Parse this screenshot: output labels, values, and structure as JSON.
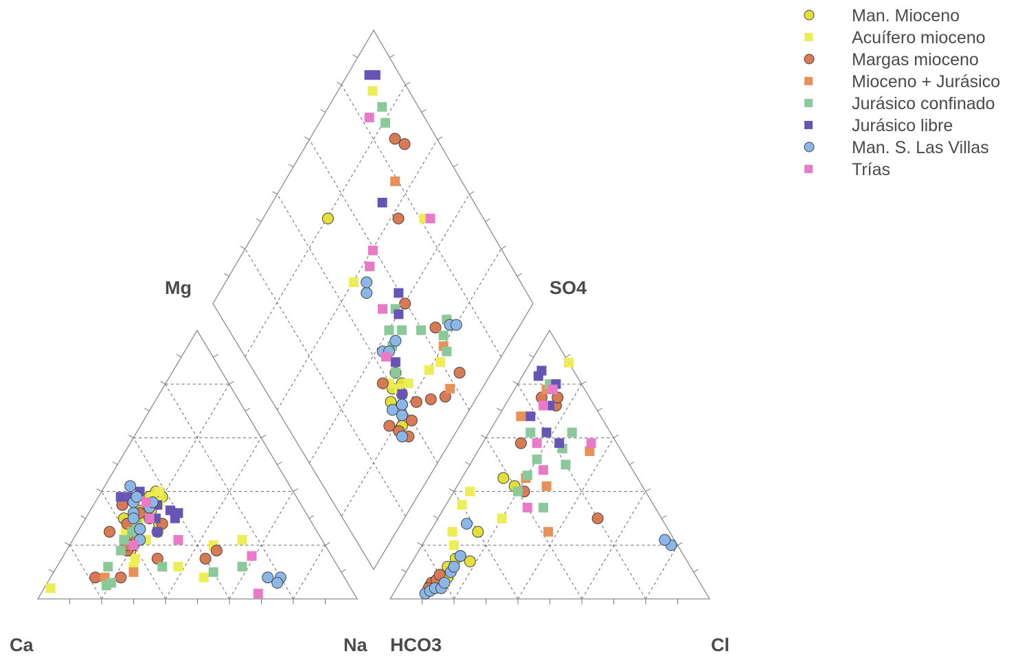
{
  "chart_data": {
    "type": "scatter",
    "subtype": "piper-diagram",
    "title": "",
    "axis_labels": {
      "cation_left": "Ca",
      "cation_right": "Na",
      "cation_top": "Mg",
      "anion_left": "HCO3",
      "anion_right": "Cl",
      "anion_top": "SO4"
    },
    "grid": true,
    "legend_position": "top-right",
    "series": [
      {
        "name": "Man. Mioceno",
        "marker": "circle",
        "color": "#e3e03a",
        "cations": [
          [
            50,
            30
          ],
          [
            42,
            38
          ],
          [
            47,
            35
          ],
          [
            52,
            33
          ],
          [
            58,
            30
          ],
          [
            48,
            33
          ],
          [
            55,
            28
          ],
          [
            46,
            38
          ],
          [
            43,
            40
          ],
          [
            56,
            35
          ],
          [
            50,
            25
          ],
          [
            48,
            28
          ],
          [
            60,
            22
          ],
          [
            55,
            26
          ],
          [
            58,
            23
          ],
          [
            62,
            18
          ]
        ],
        "anions": [
          [
            85,
            5
          ],
          [
            82,
            7
          ],
          [
            80,
            8
          ],
          [
            78,
            8
          ],
          [
            76,
            12
          ],
          [
            72,
            15
          ],
          [
            70,
            16
          ],
          [
            68,
            14
          ],
          [
            86,
            3
          ],
          [
            84,
            6
          ],
          [
            40,
            42
          ],
          [
            42,
            45
          ],
          [
            60,
            25
          ]
        ]
      },
      {
        "name": "Acuífero mioceno",
        "marker": "square",
        "color": "#eded55",
        "cations": [
          [
            42,
            40
          ],
          [
            45,
            38
          ],
          [
            50,
            32
          ],
          [
            48,
            35
          ],
          [
            52,
            30
          ],
          [
            44,
            36
          ],
          [
            60,
            25
          ],
          [
            55,
            22
          ],
          [
            62,
            15
          ],
          [
            64,
            12
          ],
          [
            35,
            20
          ],
          [
            25,
            22
          ],
          [
            50,
            12
          ],
          [
            44,
            8
          ],
          [
            94,
            4
          ]
        ],
        "anions": [
          [
            0,
            88
          ],
          [
            55,
            40
          ],
          [
            60,
            35
          ],
          [
            70,
            20
          ],
          [
            68,
            25
          ],
          [
            50,
            30
          ]
        ]
      },
      {
        "name": "Margas mioceno",
        "marker": "circle",
        "color": "#d97a55",
        "cations": [
          [
            58,
            28
          ],
          [
            52,
            32
          ],
          [
            55,
            26
          ],
          [
            47,
            28
          ],
          [
            60,
            20
          ],
          [
            63,
            18
          ],
          [
            56,
            35
          ],
          [
            50,
            30
          ],
          [
            48,
            34
          ],
          [
            70,
            8
          ],
          [
            58,
            22
          ],
          [
            65,
            25
          ],
          [
            35,
            18
          ],
          [
            55,
            15
          ],
          [
            78,
            8
          ],
          [
            40,
            15
          ],
          [
            62,
            20
          ]
        ],
        "anions": [
          [
            84,
            6
          ],
          [
            82,
            7
          ],
          [
            80,
            9
          ],
          [
            86,
            4
          ],
          [
            15,
            75
          ],
          [
            12,
            72
          ],
          [
            30,
            58
          ],
          [
            20,
            30
          ],
          [
            38,
            40
          ],
          [
            10,
            75
          ]
        ]
      },
      {
        "name": "Mioceno + Jurásico",
        "marker": "square",
        "color": "#e8925a",
        "cations": [
          [
            75,
            8
          ],
          [
            65,
            10
          ]
        ],
        "anions": [
          [
            10,
            85
          ],
          [
            12,
            78
          ],
          [
            38,
            25
          ],
          [
            10,
            55
          ],
          [
            35,
            45
          ],
          [
            25,
            68
          ],
          [
            30,
            42
          ]
        ]
      },
      {
        "name": "Jurásico confinado",
        "marker": "square",
        "color": "#8cc99a",
        "cations": [
          [
            58,
            25
          ],
          [
            55,
            28
          ],
          [
            62,
            22
          ],
          [
            65,
            18
          ],
          [
            55,
            12
          ],
          [
            40,
            10
          ],
          [
            30,
            12
          ],
          [
            72,
            12
          ],
          [
            74,
            6
          ],
          [
            76,
            5
          ]
        ],
        "anions": [
          [
            10,
            80
          ],
          [
            25,
            62
          ],
          [
            18,
            56
          ],
          [
            28,
            52
          ],
          [
            34,
            46
          ],
          [
            40,
            40
          ],
          [
            12,
            62
          ],
          [
            20,
            50
          ],
          [
            35,
            34
          ]
        ]
      },
      {
        "name": "Jurásico libre",
        "marker": "square",
        "color": "#6655b5",
        "cations": [
          [
            52,
            38
          ],
          [
            48,
            40
          ],
          [
            45,
            35
          ],
          [
            42,
            33
          ],
          [
            40,
            32
          ],
          [
            42,
            30
          ],
          [
            48,
            30
          ],
          [
            55,
            38
          ],
          [
            50,
            25
          ]
        ],
        "anions": [
          [
            10,
            85
          ],
          [
            12,
            83
          ],
          [
            8,
            80
          ],
          [
            14,
            72
          ],
          [
            20,
            62
          ],
          [
            22,
            68
          ],
          [
            18,
            58
          ]
        ]
      },
      {
        "name": "Man. S. Las Villas",
        "marker": "circle",
        "color": "#8ab6e8",
        "cations": [
          [
            50,
            42
          ],
          [
            52,
            36
          ],
          [
            54,
            32
          ],
          [
            55,
            30
          ],
          [
            48,
            34
          ],
          [
            50,
            38
          ],
          [
            46,
            36
          ],
          [
            20,
            8
          ],
          [
            22,
            6
          ],
          [
            24,
            8
          ],
          [
            55,
            26
          ],
          [
            57,
            22
          ]
        ],
        "anions": [
          [
            88,
            2
          ],
          [
            86,
            3
          ],
          [
            84,
            4
          ],
          [
            82,
            4
          ],
          [
            80,
            6
          ],
          [
            76,
            10
          ],
          [
            74,
            12
          ],
          [
            70,
            16
          ],
          [
            2,
            20
          ],
          [
            3,
            22
          ],
          [
            62,
            28
          ]
        ]
      },
      {
        "name": "Trías",
        "marker": "square",
        "color": "#e87ac8",
        "cations": [
          [
            50,
            30
          ],
          [
            48,
            36
          ],
          [
            60,
            20
          ],
          [
            25,
            16
          ],
          [
            30,
            2
          ],
          [
            45,
            22
          ]
        ],
        "anions": [
          [
            16,
            72
          ],
          [
            10,
            78
          ],
          [
            25,
            58
          ],
          [
            28,
            48
          ],
          [
            40,
            34
          ],
          [
            8,
            58
          ]
        ]
      }
    ],
    "diamond_points": [
      {
        "s": 0,
        "x": 0.36,
        "y": 0.18
      },
      {
        "s": 0,
        "x": 0.38,
        "y": 0.2
      },
      {
        "s": 0,
        "x": 0.4,
        "y": 0.22
      },
      {
        "s": 0,
        "x": 0.42,
        "y": 0.24
      },
      {
        "s": 0,
        "x": 0.44,
        "y": 0.26
      },
      {
        "s": 0,
        "x": 0.37,
        "y": 0.26
      },
      {
        "s": 0,
        "x": 0.4,
        "y": 0.28
      },
      {
        "s": 0,
        "x": 0.44,
        "y": 0.3
      },
      {
        "s": 0,
        "x": 0.52,
        "y": 0.8
      },
      {
        "s": 1,
        "x": 0.4,
        "y": 0.3
      },
      {
        "s": 1,
        "x": 0.42,
        "y": 0.26
      },
      {
        "s": 1,
        "x": 0.46,
        "y": 0.24
      },
      {
        "s": 1,
        "x": 0.48,
        "y": 0.6
      },
      {
        "s": 1,
        "x": 0.9,
        "y": 0.9
      },
      {
        "s": 1,
        "x": 0.82,
        "y": 0.5
      },
      {
        "s": 1,
        "x": 0.55,
        "y": 0.2
      },
      {
        "s": 1,
        "x": 0.6,
        "y": 0.18
      },
      {
        "s": 2,
        "x": 0.32,
        "y": 0.22
      },
      {
        "s": 2,
        "x": 0.34,
        "y": 0.18
      },
      {
        "s": 2,
        "x": 0.36,
        "y": 0.14
      },
      {
        "s": 2,
        "x": 0.4,
        "y": 0.16
      },
      {
        "s": 2,
        "x": 0.45,
        "y": 0.18
      },
      {
        "s": 2,
        "x": 0.5,
        "y": 0.14
      },
      {
        "s": 2,
        "x": 0.55,
        "y": 0.1
      },
      {
        "s": 2,
        "x": 0.38,
        "y": 0.32
      },
      {
        "s": 2,
        "x": 0.9,
        "y": 0.7
      },
      {
        "s": 2,
        "x": 0.88,
        "y": 0.74
      },
      {
        "s": 2,
        "x": 0.74,
        "y": 0.58
      },
      {
        "s": 2,
        "x": 0.65,
        "y": 0.26
      },
      {
        "s": 2,
        "x": 0.6,
        "y": 0.4
      },
      {
        "s": 2,
        "x": 0.64,
        "y": 0.1
      },
      {
        "s": 3,
        "x": 0.8,
        "y": 0.66
      },
      {
        "s": 3,
        "x": 0.64,
        "y": 0.2
      },
      {
        "s": 3,
        "x": 0.58,
        "y": 0.1
      },
      {
        "s": 4,
        "x": 0.88,
        "y": 0.8
      },
      {
        "s": 4,
        "x": 0.9,
        "y": 0.84
      },
      {
        "s": 4,
        "x": 0.54,
        "y": 0.36
      },
      {
        "s": 4,
        "x": 0.56,
        "y": 0.42
      },
      {
        "s": 4,
        "x": 0.6,
        "y": 0.3
      },
      {
        "s": 4,
        "x": 0.44,
        "y": 0.3
      },
      {
        "s": 4,
        "x": 0.48,
        "y": 0.36
      },
      {
        "s": 4,
        "x": 0.5,
        "y": 0.4
      },
      {
        "s": 4,
        "x": 0.64,
        "y": 0.18
      },
      {
        "s": 4,
        "x": 0.66,
        "y": 0.22
      },
      {
        "s": 4,
        "x": 0.7,
        "y": 0.24
      },
      {
        "s": 5,
        "x": 0.94,
        "y": 0.92
      },
      {
        "s": 5,
        "x": 0.92,
        "y": 0.94
      },
      {
        "s": 5,
        "x": 0.72,
        "y": 0.66
      },
      {
        "s": 5,
        "x": 0.6,
        "y": 0.44
      },
      {
        "s": 5,
        "x": 0.56,
        "y": 0.4
      },
      {
        "s": 5,
        "x": 0.46,
        "y": 0.32
      },
      {
        "s": 5,
        "x": 0.42,
        "y": 0.24
      },
      {
        "s": 6,
        "x": 0.5,
        "y": 0.54
      },
      {
        "s": 6,
        "x": 0.52,
        "y": 0.56
      },
      {
        "s": 6,
        "x": 0.44,
        "y": 0.38
      },
      {
        "s": 6,
        "x": 0.46,
        "y": 0.36
      },
      {
        "s": 6,
        "x": 0.5,
        "y": 0.36
      },
      {
        "s": 6,
        "x": 0.38,
        "y": 0.2
      },
      {
        "s": 6,
        "x": 0.34,
        "y": 0.16
      },
      {
        "s": 6,
        "x": 0.36,
        "y": 0.24
      },
      {
        "s": 6,
        "x": 0.4,
        "y": 0.22
      },
      {
        "s": 6,
        "x": 0.7,
        "y": 0.22
      },
      {
        "s": 6,
        "x": 0.72,
        "y": 0.2
      },
      {
        "s": 7,
        "x": 0.84,
        "y": 0.86
      },
      {
        "s": 7,
        "x": 0.56,
        "y": 0.58
      },
      {
        "s": 7,
        "x": 0.52,
        "y": 0.46
      },
      {
        "s": 7,
        "x": 0.44,
        "y": 0.36
      },
      {
        "s": 7,
        "x": 0.84,
        "y": 0.48
      },
      {
        "s": 7,
        "x": 0.6,
        "y": 0.6
      }
    ]
  }
}
